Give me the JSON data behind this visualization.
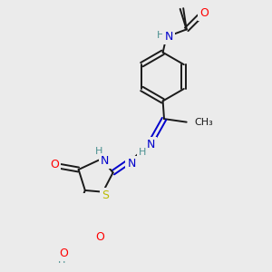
{
  "bg_color": "#ebebeb",
  "bond_color": "#1a1a1a",
  "atom_colors": {
    "N": "#0000cc",
    "O": "#ff0000",
    "S": "#bbbb00",
    "H": "#4a9090",
    "C": "#1a1a1a"
  }
}
